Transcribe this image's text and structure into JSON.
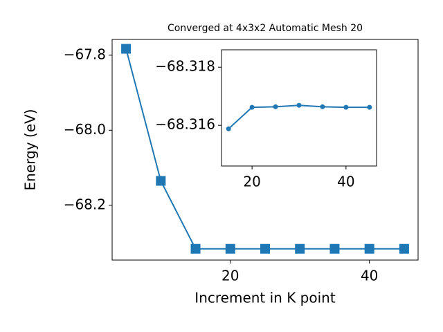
{
  "chart_data": [
    {
      "type": "line",
      "title": "Converged at 4x3x2 Automatic Mesh 20",
      "x_label": "Increment in K point",
      "y_label": "Energy (eV)",
      "x": [
        5,
        10,
        15,
        20,
        25,
        30,
        35,
        40,
        45
      ],
      "series": [
        {
          "color": "#1f77b4",
          "marker": "square",
          "values": [
            -67.783,
            -68.135,
            -68.316,
            -68.316,
            -68.316,
            -68.316,
            -68.316,
            -68.316,
            -68.316
          ]
        }
      ],
      "xlim": [
        3,
        47
      ],
      "ylim": [
        -68.346,
        -67.758
      ],
      "xticks": [
        20,
        40
      ],
      "yticks": [
        {
          "value": -68.2,
          "label": "−68.2"
        },
        {
          "value": -68.0,
          "label": "−68.0"
        },
        {
          "value": -67.8,
          "label": "−67.8"
        }
      ]
    },
    {
      "type": "line",
      "x": [
        15,
        20,
        25,
        30,
        35,
        40,
        45
      ],
      "series": [
        {
          "color": "#1f77b4",
          "marker": "circle",
          "values": [
            -68.31588,
            -68.31662,
            -68.31664,
            -68.31669,
            -68.31664,
            -68.31662,
            -68.31662
          ]
        }
      ],
      "xlim": [
        13.5,
        46.5
      ],
      "ylim": [
        -68.3146,
        -68.3186
      ],
      "xticks": [
        20,
        40
      ],
      "yticks": [
        {
          "value": -68.316,
          "label": "−68.316"
        },
        {
          "value": -68.318,
          "label": "−68.318"
        }
      ]
    }
  ]
}
